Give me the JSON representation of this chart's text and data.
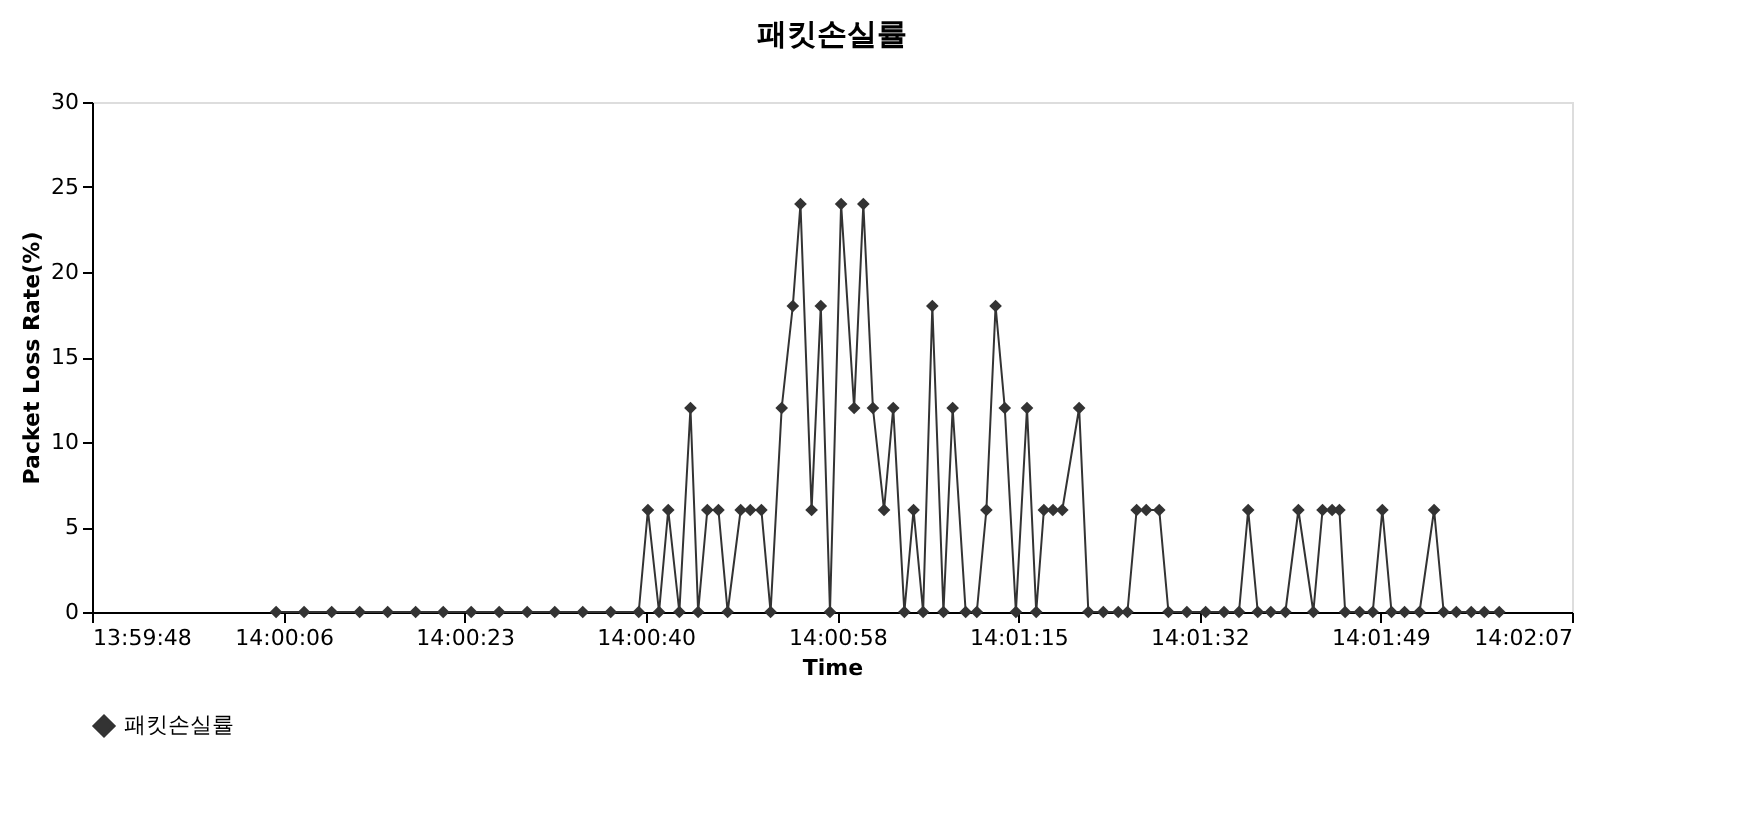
{
  "chart_data": {
    "type": "line",
    "title": "패킷손실률",
    "xlabel": "Time",
    "ylabel": "Packet Loss Rate(%)",
    "x": [
      14.00147,
      14.0022,
      14.00292,
      14.00365,
      14.00438,
      14.00511,
      14.00583,
      14.00656,
      14.00729,
      14.00802,
      14.00874,
      14.00947,
      14.0102,
      14.01093,
      14.01117,
      14.01146,
      14.0117,
      14.01199,
      14.01228,
      14.01248,
      14.01272,
      14.01301,
      14.01325,
      14.01359,
      14.01384,
      14.01413,
      14.01437,
      14.01466,
      14.01495,
      14.01515,
      14.01544,
      14.01568,
      14.01592,
      14.01621,
      14.01655,
      14.01679,
      14.01704,
      14.01733,
      14.01757,
      14.01786,
      14.0181,
      14.01835,
      14.01859,
      14.01888,
      14.01912,
      14.01946,
      14.01975,
      14.02,
      14.02024,
      14.02048,
      14.02077,
      14.02106,
      14.0213,
      14.0215,
      14.02174,
      14.02198,
      14.02242,
      14.02266,
      14.02305,
      14.02344,
      14.02368,
      14.02392,
      14.02417,
      14.02451,
      14.02475,
      14.02523,
      14.02572,
      14.0262,
      14.02659,
      14.02683,
      14.02708,
      14.02742,
      14.0278,
      14.02814,
      14.02853,
      14.02877,
      14.02902,
      14.02921,
      14.02936,
      14.02974,
      14.03008,
      14.03033,
      14.03057,
      14.03091,
      14.0313,
      14.03168,
      14.03193,
      14.03226,
      14.03265,
      14.03299,
      14.03338
    ],
    "series": [
      {
        "name": "패킷손실률",
        "color": "#333333",
        "values": [
          0,
          0,
          0,
          0,
          0,
          0,
          0,
          0,
          0,
          0,
          0,
          0,
          0,
          0,
          6,
          0,
          6,
          0,
          12,
          0,
          6,
          6,
          0,
          6,
          6,
          6,
          0,
          12,
          18,
          24,
          6,
          18,
          0,
          24,
          12,
          24,
          12,
          6,
          12,
          0,
          6,
          0,
          18,
          0,
          12,
          0,
          0,
          6,
          18,
          12,
          0,
          12,
          0,
          6,
          6,
          6,
          12,
          0,
          0,
          0,
          0,
          6,
          6,
          6,
          0,
          0,
          0,
          0,
          0,
          6,
          0,
          0,
          0,
          6,
          0,
          6,
          6,
          6,
          0,
          0,
          0,
          6,
          0,
          0,
          0,
          6,
          0,
          0,
          0,
          0,
          0
        ]
      }
    ],
    "xlim": [
      13.996667,
      14.035278
    ],
    "xticks": [
      {
        "value": 13.996667,
        "label": "13:59:48"
      },
      {
        "value": 14.001667,
        "label": "14:00:06"
      },
      {
        "value": 14.006389,
        "label": "14:00:23"
      },
      {
        "value": 14.011111,
        "label": "14:00:40"
      },
      {
        "value": 14.016111,
        "label": "14:00:58"
      },
      {
        "value": 14.020833,
        "label": "14:01:15"
      },
      {
        "value": 14.025556,
        "label": "14:01:32"
      },
      {
        "value": 14.030278,
        "label": "14:01:49"
      },
      {
        "value": 14.035278,
        "label": "14:02:07"
      }
    ],
    "ylim": [
      0,
      30
    ],
    "yticks": [
      0,
      5,
      10,
      15,
      20,
      25,
      30
    ],
    "grid": false,
    "legend": "bottom",
    "marker": "diamond",
    "line_style": "solid"
  }
}
